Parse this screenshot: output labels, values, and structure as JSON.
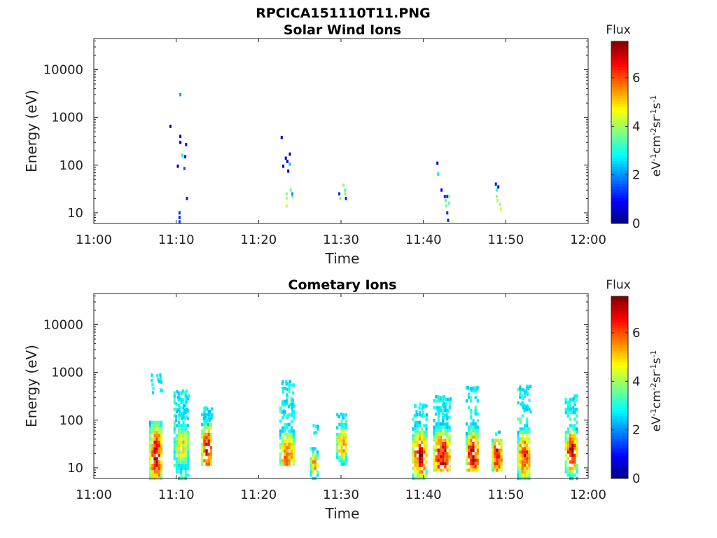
{
  "figure_title": "RPCICA151110T11.PNG",
  "colorbar": {
    "title": "Flux",
    "label": "eV-1cm-2sr-1s-1",
    "ticks": [
      "0",
      "2",
      "4",
      "6"
    ],
    "range": [
      0,
      7.5
    ],
    "colormap": "jet"
  },
  "chart_data": [
    {
      "type": "heatmap",
      "title": "Solar Wind Ions",
      "xlabel": "Time",
      "ylabel": "Energy (eV)",
      "xticks": [
        "11:00",
        "11:10",
        "11:20",
        "11:30",
        "11:40",
        "11:50",
        "12:00"
      ],
      "xlim_minutes": [
        0,
        60
      ],
      "yticks": [
        "10",
        "100",
        "1000",
        "10000"
      ],
      "ylim": [
        6,
        45000
      ],
      "yscale": "log",
      "cells": [
        [
          9.3,
          650,
          0.4
        ],
        [
          10.2,
          95,
          0.6
        ],
        [
          10.5,
          3000,
          2.2
        ],
        [
          10.5,
          400,
          0.4
        ],
        [
          10.5,
          300,
          0.5
        ],
        [
          10.7,
          160,
          2.8
        ],
        [
          11.0,
          85,
          1.6
        ],
        [
          11.1,
          150,
          0.9
        ],
        [
          11.2,
          270,
          0.9
        ],
        [
          11.3,
          20,
          1.1
        ],
        [
          10.4,
          10,
          1.3
        ],
        [
          10.4,
          8,
          1.2
        ],
        [
          10.4,
          6.5,
          1.4
        ],
        [
          22.8,
          380,
          0.5
        ],
        [
          23.0,
          95,
          0.5
        ],
        [
          23.3,
          140,
          0.5
        ],
        [
          23.5,
          120,
          0.6
        ],
        [
          23.6,
          75,
          0.4
        ],
        [
          23.8,
          170,
          0.3
        ],
        [
          23.8,
          105,
          2.4
        ],
        [
          23.4,
          25,
          3.8
        ],
        [
          23.4,
          20,
          4.1
        ],
        [
          23.4,
          14,
          4.3
        ],
        [
          23.9,
          30,
          3.6
        ],
        [
          24.1,
          22,
          3.8
        ],
        [
          24.1,
          25,
          2.0
        ],
        [
          29.8,
          25,
          1.3
        ],
        [
          29.9,
          20,
          3.8
        ],
        [
          30.3,
          38,
          3.9
        ],
        [
          30.5,
          30,
          3.3
        ],
        [
          30.5,
          25,
          3.7
        ],
        [
          30.6,
          20,
          1.2
        ],
        [
          41.7,
          110,
          0.6
        ],
        [
          41.8,
          65,
          2.6
        ],
        [
          42.2,
          30,
          1.0
        ],
        [
          42.6,
          22,
          1.2
        ],
        [
          42.7,
          18,
          3.3
        ],
        [
          42.8,
          14,
          3.7
        ],
        [
          42.9,
          22,
          0.8
        ],
        [
          42.9,
          10,
          1.2
        ],
        [
          43.0,
          7,
          1.2
        ],
        [
          43.1,
          22,
          3.6
        ],
        [
          43.1,
          16,
          3.5
        ],
        [
          48.8,
          40,
          1.1
        ],
        [
          49.1,
          35,
          0.8
        ],
        [
          48.9,
          30,
          3.1
        ],
        [
          48.9,
          22,
          3.9
        ],
        [
          49.0,
          18,
          4.1
        ],
        [
          49.3,
          15,
          3.9
        ],
        [
          49.4,
          12,
          4.4
        ]
      ]
    },
    {
      "type": "heatmap",
      "title": "Cometary Ions",
      "xlabel": "Time",
      "ylabel": "Energy (eV)",
      "xticks": [
        "11:00",
        "11:10",
        "11:20",
        "11:30",
        "11:40",
        "11:50",
        "12:00"
      ],
      "xlim_minutes": [
        0,
        60
      ],
      "yticks": [
        "10",
        "100",
        "1000",
        "10000"
      ],
      "ylim": [
        6,
        45000
      ],
      "yscale": "log",
      "bursts": [
        {
          "t": 7.6,
          "w": 1.5,
          "lo": 6,
          "hi": 100,
          "peak": 18,
          "pv": 6.8,
          "spread": 1.8,
          "cyan": [
            300,
            900,
            5,
            0.6
          ]
        },
        {
          "t": 10.7,
          "w": 1.8,
          "lo": 6,
          "hi": 400,
          "peak": 30,
          "pv": 4.8,
          "spread": 1.3,
          "cyan": [
            100,
            450,
            14,
            0.6
          ]
        },
        {
          "t": 13.8,
          "w": 1.3,
          "lo": 12,
          "hi": 200,
          "peak": 25,
          "pv": 6.6,
          "spread": 1.5,
          "cyan": [
            80,
            180,
            5,
            0.6
          ]
        },
        {
          "t": 23.5,
          "w": 1.7,
          "lo": 12,
          "hi": 550,
          "peak": 20,
          "pv": 6.0,
          "spread": 1.2,
          "cyan": [
            120,
            700,
            10,
            0.5
          ]
        },
        {
          "t": 26.8,
          "w": 0.9,
          "lo": 6,
          "hi": 28,
          "peak": 12,
          "pv": 5.4,
          "spread": 0.8,
          "cyan": [
            50,
            80,
            2,
            0.5
          ]
        },
        {
          "t": 30.2,
          "w": 1.3,
          "lo": 12,
          "hi": 140,
          "peak": 32,
          "pv": 5.6,
          "spread": 1.0,
          "cyan": [
            100,
            140,
            3,
            0.5
          ]
        },
        {
          "t": 39.6,
          "w": 1.7,
          "lo": 6,
          "hi": 220,
          "peak": 18,
          "pv": 6.7,
          "spread": 1.4,
          "cyan": [
            120,
            220,
            6,
            0.5
          ]
        },
        {
          "t": 42.3,
          "w": 2.0,
          "lo": 9,
          "hi": 320,
          "peak": 18,
          "pv": 6.8,
          "spread": 1.4,
          "cyan": [
            100,
            320,
            10,
            0.5
          ]
        },
        {
          "t": 46.0,
          "w": 1.5,
          "lo": 9,
          "hi": 550,
          "peak": 18,
          "pv": 7.0,
          "spread": 1.3,
          "cyan": [
            400,
            550,
            3,
            0.5
          ]
        },
        {
          "t": 49.0,
          "w": 1.2,
          "lo": 9,
          "hi": 40,
          "peak": 18,
          "pv": 6.8,
          "spread": 1.1,
          "cyan": [
            50,
            60,
            1,
            0.5
          ]
        },
        {
          "t": 52.3,
          "w": 1.6,
          "lo": 6,
          "hi": 520,
          "peak": 18,
          "pv": 6.5,
          "spread": 1.3,
          "cyan": [
            150,
            520,
            8,
            0.5
          ]
        },
        {
          "t": 58.0,
          "w": 1.4,
          "lo": 6,
          "hi": 320,
          "peak": 22,
          "pv": 6.9,
          "spread": 1.2,
          "cyan": [
            150,
            320,
            5,
            0.5
          ]
        }
      ]
    }
  ]
}
